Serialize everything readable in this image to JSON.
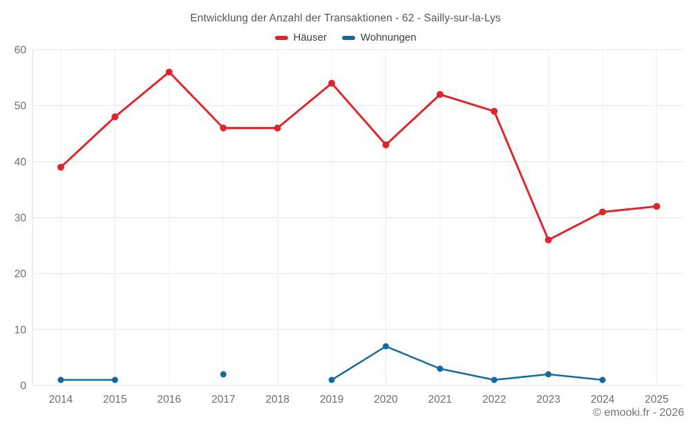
{
  "chart": {
    "title": "Entwicklung der Anzahl der Transaktionen - 62 - Sailly-sur-la-Lys",
    "legend": [
      {
        "label": "Häuser",
        "color": "#e0252a"
      },
      {
        "label": "Wohnungen",
        "color": "#1569a3"
      }
    ]
  },
  "chart_data": {
    "type": "line",
    "title": "Entwicklung der Anzahl der Transaktionen - 62 - Sailly-sur-la-Lys",
    "categories": [
      "2014",
      "2015",
      "2016",
      "2017",
      "2018",
      "2019",
      "2020",
      "2021",
      "2022",
      "2023",
      "2024",
      "2025"
    ],
    "series": [
      {
        "name": "Häuser",
        "color": "#e0252a",
        "values": [
          39,
          48,
          56,
          46,
          46,
          54,
          43,
          52,
          49,
          26,
          31,
          32
        ]
      },
      {
        "name": "Wohnungen",
        "color": "#1569a3",
        "values": [
          1,
          1,
          null,
          2,
          null,
          1,
          7,
          3,
          1,
          2,
          1,
          null
        ]
      }
    ],
    "xlabel": "",
    "ylabel": "",
    "ylim": [
      0,
      60
    ],
    "ytick_step": 10,
    "grid": true,
    "legend_position": "top"
  },
  "footer": {
    "copyright": "© emooki.fr - 2026"
  }
}
